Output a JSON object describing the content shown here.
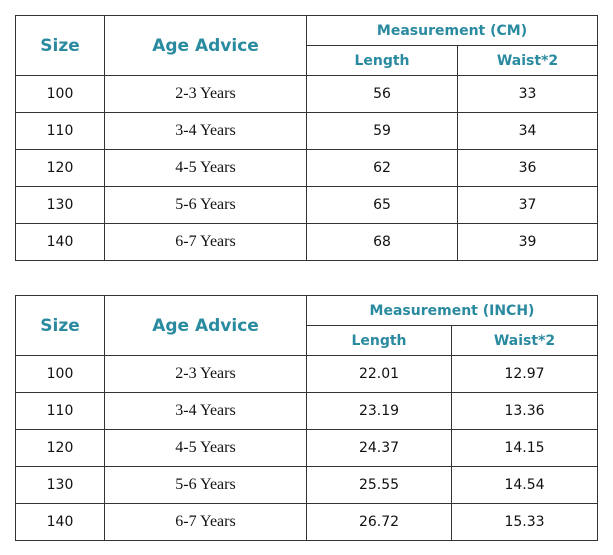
{
  "tables": [
    {
      "header": {
        "size": "Size",
        "age": "Age Advice",
        "group": "Measurement (CM)",
        "length": "Length",
        "waist": "Waist*2"
      },
      "rows": [
        [
          "100",
          "2-3 Years",
          "56",
          "33"
        ],
        [
          "110",
          "3-4 Years",
          "59",
          "34"
        ],
        [
          "120",
          "4-5 Years",
          "62",
          "36"
        ],
        [
          "130",
          "5-6 Years",
          "65",
          "37"
        ],
        [
          "140",
          "6-7 Years",
          "68",
          "39"
        ]
      ]
    },
    {
      "header": {
        "size": "Size",
        "age": "Age Advice",
        "group": "Measurement (INCH)",
        "length": "Length",
        "waist": "Waist*2"
      },
      "rows": [
        [
          "100",
          "2-3 Years",
          "22.01",
          "12.97"
        ],
        [
          "110",
          "3-4 Years",
          "23.19",
          "13.36"
        ],
        [
          "120",
          "4-5 Years",
          "24.37",
          "14.15"
        ],
        [
          "130",
          "5-6 Years",
          "25.55",
          "14.54"
        ],
        [
          "140",
          "6-7 Years",
          "26.72",
          "15.33"
        ]
      ]
    }
  ]
}
